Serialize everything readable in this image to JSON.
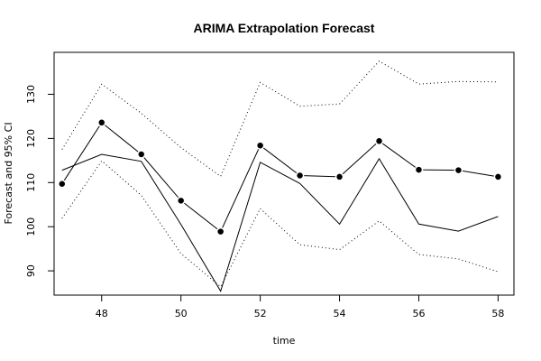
{
  "chart_data": {
    "type": "line",
    "title": "ARIMA Extrapolation Forecast",
    "xlabel": "time",
    "ylabel": "Forecast and 95% CI",
    "xlim": [
      46.8,
      58.4
    ],
    "ylim": [
      84.5,
      139.5
    ],
    "xticks": [
      48,
      50,
      52,
      54,
      56,
      58
    ],
    "yticks": [
      90,
      100,
      110,
      120,
      130
    ],
    "grid": false,
    "legend": "none",
    "x": [
      47,
      48,
      49,
      50,
      51,
      52,
      53,
      54,
      55,
      56,
      57,
      58
    ],
    "series": [
      {
        "role": "actual",
        "style": "solid",
        "values": [
          112.8,
          116.4,
          114.8,
          100.5,
          85.4,
          114.6,
          109.8,
          100.6,
          115.4,
          100.6,
          99.0,
          102.3
        ]
      },
      {
        "role": "forecast",
        "style": "line-with-points",
        "values": [
          109.7,
          123.6,
          116.4,
          105.9,
          98.9,
          118.4,
          111.6,
          111.3,
          119.4,
          112.9,
          112.8,
          111.3
        ]
      },
      {
        "role": "upper-95",
        "style": "dotted",
        "values": [
          117.5,
          132.3,
          125.7,
          117.9,
          111.4,
          132.7,
          127.3,
          127.8,
          137.5,
          132.3,
          132.9,
          132.8
        ]
      },
      {
        "role": "lower-95",
        "style": "dotted",
        "values": [
          101.9,
          114.9,
          107.1,
          93.9,
          86.4,
          104.1,
          95.9,
          94.8,
          101.3,
          93.7,
          92.7,
          89.8
        ]
      }
    ],
    "colors": {
      "line": "#000000",
      "points": "#000000",
      "point_outline": "#ffffff",
      "background": "#ffffff"
    }
  }
}
